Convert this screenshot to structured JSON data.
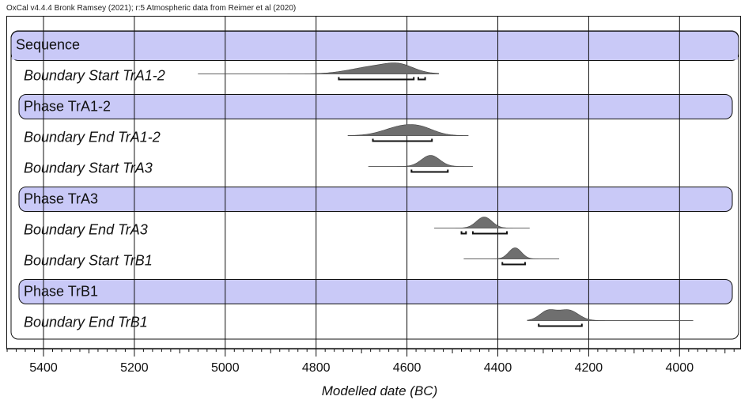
{
  "chart_data": {
    "type": "oxcal-multiplot",
    "credit": "OxCal v4.4.4 Bronk Ramsey (2021); r:5 Atmospheric data from Reimer et al (2020)",
    "xlabel": "Modelled date (BC)",
    "xlim": [
      5480,
      3880
    ],
    "major_ticks": [
      5400,
      5200,
      5000,
      4800,
      4600,
      4400,
      4200,
      4000
    ],
    "tick_labels": [
      "5400",
      "5200",
      "5000",
      "4800",
      "4600",
      "4400",
      "4200",
      "4000"
    ],
    "minor_tick_step": 20,
    "grid": true,
    "rows": [
      {
        "kind": "sequence",
        "label": "Sequence"
      },
      {
        "kind": "boundary",
        "label": "Boundary Start TrA1-2",
        "range": [
          5060,
          4530
        ],
        "peaks": [
          {
            "center": 4665,
            "width": 55,
            "height": 1
          },
          {
            "center": 4615,
            "width": 30,
            "height": 0.7
          }
        ],
        "hpd": [
          [
            4750,
            4585
          ],
          [
            4575,
            4560
          ]
        ]
      },
      {
        "kind": "phase",
        "label": "Phase TrA1-2"
      },
      {
        "kind": "boundary",
        "label": "Boundary End TrA1-2",
        "range": [
          4730,
          4465
        ],
        "peaks": [
          {
            "center": 4610,
            "width": 40,
            "height": 1
          },
          {
            "center": 4565,
            "width": 30,
            "height": 0.5
          }
        ],
        "hpd": [
          [
            4675,
            4545
          ]
        ]
      },
      {
        "kind": "boundary",
        "label": "Boundary Start TrA3",
        "range": [
          4685,
          4455
        ],
        "peaks": [
          {
            "center": 4548,
            "width": 20,
            "height": 1
          }
        ],
        "hpd": [
          [
            4590,
            4510
          ]
        ]
      },
      {
        "kind": "phase",
        "label": "Phase TrA3"
      },
      {
        "kind": "boundary",
        "label": "Boundary End TrA3",
        "range": [
          4540,
          4330
        ],
        "peaks": [
          {
            "center": 4430,
            "width": 17,
            "height": 1
          }
        ],
        "hpd": [
          [
            4480,
            4470
          ],
          [
            4455,
            4380
          ]
        ]
      },
      {
        "kind": "boundary",
        "label": "Boundary Start TrB1",
        "range": [
          4475,
          4265
        ],
        "peaks": [
          {
            "center": 4362,
            "width": 14,
            "height": 1
          }
        ],
        "hpd": [
          [
            4390,
            4340
          ]
        ]
      },
      {
        "kind": "phase",
        "label": "Phase TrB1"
      },
      {
        "kind": "boundary",
        "label": "Boundary End TrB1",
        "range": [
          4335,
          3970
        ],
        "peaks": [
          {
            "center": 4290,
            "width": 18,
            "height": 0.9
          },
          {
            "center": 4245,
            "width": 22,
            "height": 1
          }
        ],
        "hpd": [
          [
            4310,
            4215
          ]
        ]
      }
    ],
    "colors": {
      "band_fill": "#c9c9f7",
      "density_fill": "#6f6f6f",
      "line": "#111111",
      "grid": "#111111"
    }
  }
}
